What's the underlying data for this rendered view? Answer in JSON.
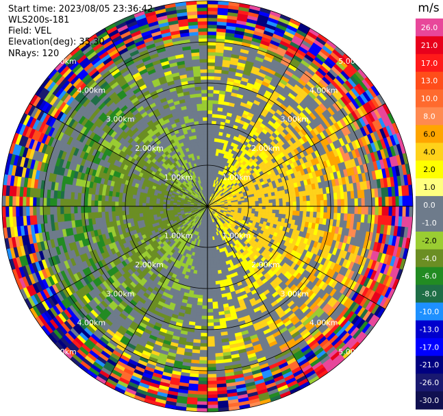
{
  "header": {
    "start_time": "Start time: 2023/08/05 23:36:42",
    "instrument": "WLS200s-181",
    "field": "Field: VEL",
    "elevation": "Elevation(deg): 35.30",
    "nrays": "NRays: 120"
  },
  "colorbar": {
    "unit": "m/s",
    "ticks": [
      "26.0",
      "21.0",
      "17.0",
      "13.0",
      "10.0",
      "8.0",
      "6.0",
      "4.0",
      "2.0",
      "1.0",
      "0.0",
      "-1.0",
      "-2.0",
      "-4.0",
      "-6.0",
      "-8.0",
      "-10.0",
      "-13.0",
      "-17.0",
      "-21.0",
      "-26.0",
      "-30.0"
    ],
    "colors": [
      "#e8479a",
      "#e8001c",
      "#ff1a1a",
      "#ff4d1a",
      "#ff6a2e",
      "#ff8a50",
      "#ffa500",
      "#ffd21a",
      "#ffff00",
      "#ffff80",
      "#6e7b8b",
      "#6e7b8b",
      "#9acd32",
      "#6b8e23",
      "#228b22",
      "#1e6e46",
      "#1e90ff",
      "#0000cd",
      "#0000ff",
      "#000080",
      "#191970",
      "#101050"
    ]
  },
  "chart_data": {
    "type": "heatmap",
    "title": "",
    "field": "VEL",
    "unit": "m/s",
    "nrays": 120,
    "elevation_deg": 35.3,
    "range_ring_labels": [
      "1.00km",
      "2.00km",
      "3.00km",
      "4.00km",
      "5.00km"
    ],
    "range_rings_km": [
      1,
      2,
      3,
      4,
      5
    ],
    "max_range_km": 5.0,
    "velocity_pattern": "positive (yellow/orange) to the east, negative (green) to the southwest, near zero (gray) along north-south line",
    "color_scale": [
      26,
      21,
      17,
      13,
      10,
      8,
      6,
      4,
      2,
      1,
      0,
      -1,
      -2,
      -4,
      -6,
      -8,
      -10,
      -13,
      -17,
      -21,
      -26,
      -30
    ]
  }
}
